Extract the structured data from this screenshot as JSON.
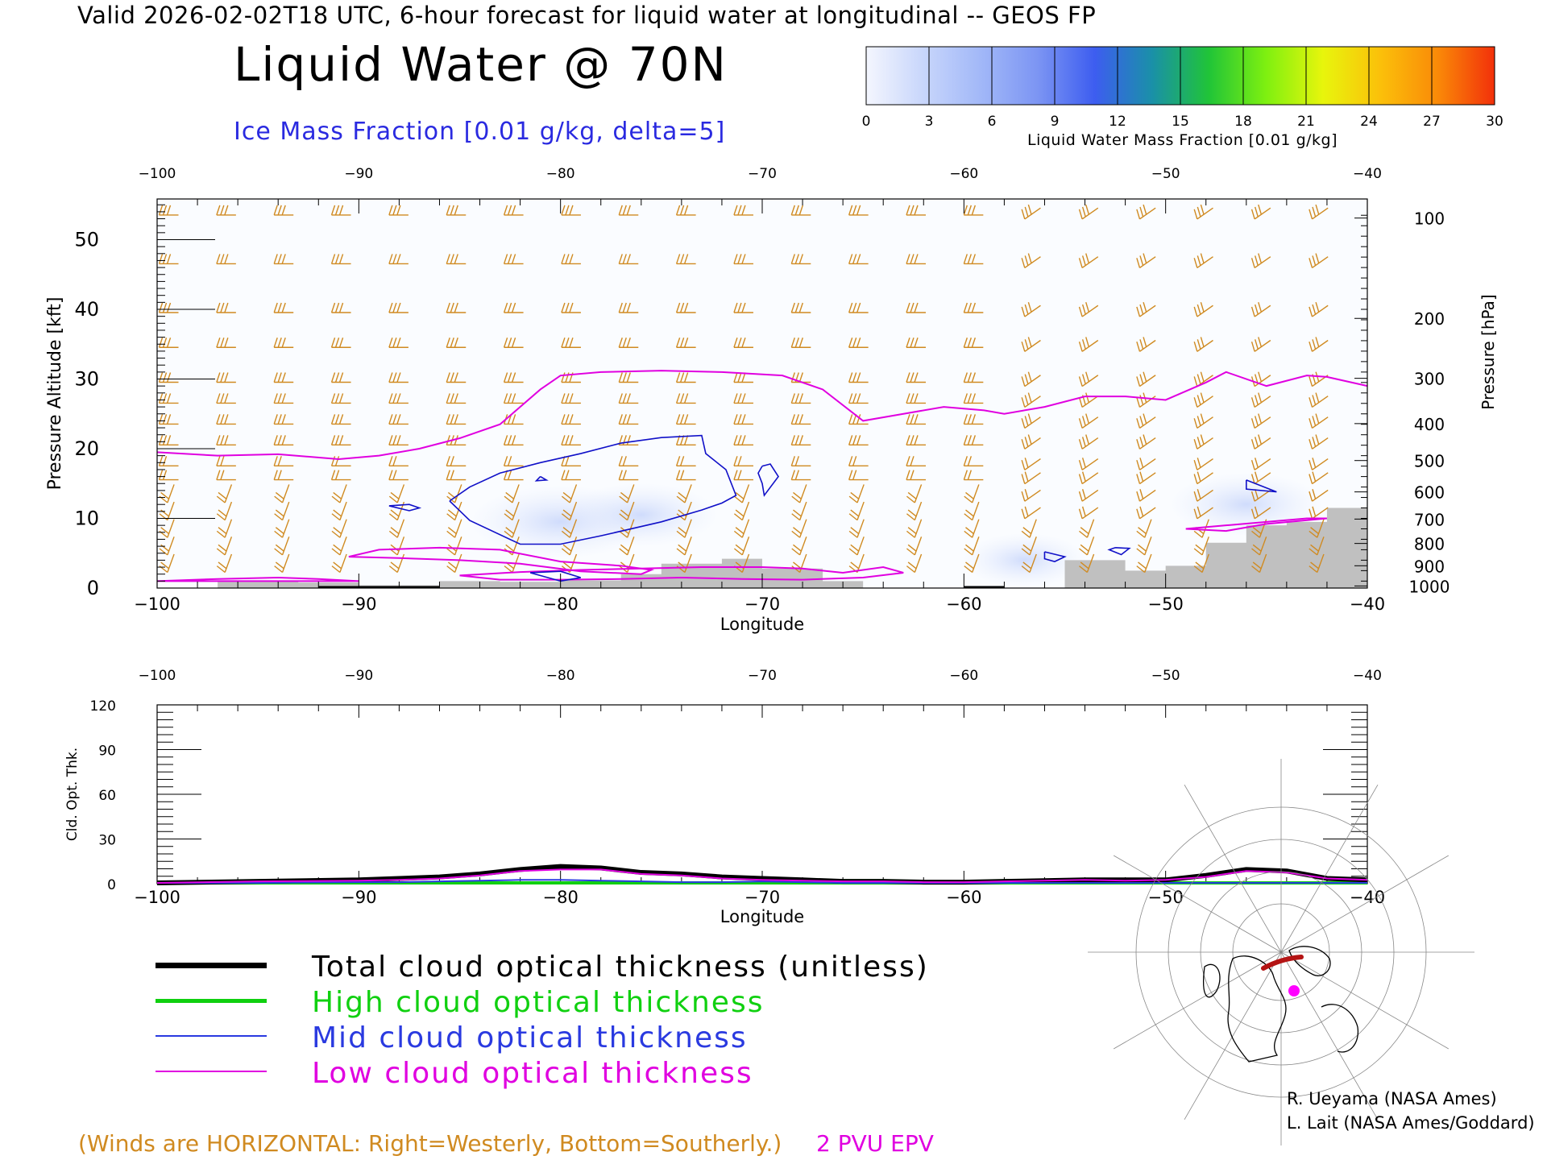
{
  "header": {
    "line": "Valid 2026-02-02T18 UTC, 6-hour forecast for liquid water at longitudinal -- GEOS FP",
    "title": "Liquid Water @ 70N",
    "ice_label": "Ice Mass Fraction [0.01 g/kg, delta=5]"
  },
  "colorbar": {
    "ticks": [
      "0",
      "3",
      "6",
      "9",
      "12",
      "15",
      "18",
      "21",
      "24",
      "27",
      "30"
    ],
    "label": "Liquid Water Mass Fraction [0.01 g/kg]",
    "colors": [
      "#f4f6fe",
      "#c8d6fb",
      "#a2b8f8",
      "#7c95f3",
      "#3d5df0",
      "#1a90a8",
      "#20c438",
      "#7ef010",
      "#e8f50c",
      "#fbc00a",
      "#fa8a08",
      "#f2300a"
    ]
  },
  "colors": {
    "wind": "#d08a20",
    "epv": "#e000e0",
    "ice": "#1010c8",
    "terrain": "#c0c0c0"
  },
  "chart_data": [
    {
      "type": "contour",
      "name": "cross-section",
      "xlabel": "Longitude",
      "ylabel": "Pressure Altitude [kft]",
      "ylabel_right": "Pressure [hPa]",
      "xlim": [
        -100,
        -40
      ],
      "ylim": [
        0,
        55
      ],
      "x_ticks": [
        -100,
        -90,
        -80,
        -70,
        -60,
        -50,
        -40
      ],
      "x_tick_labels": [
        "−100",
        "−90",
        "−80",
        "−70",
        "−60",
        "−50",
        "−40"
      ],
      "y_ticks": [
        0,
        10,
        20,
        30,
        40,
        50
      ],
      "pressure_ticks": [
        {
          "label": "100",
          "kft": 53.1
        },
        {
          "label": "200",
          "kft": 38.7
        },
        {
          "label": "300",
          "kft": 30.1
        },
        {
          "label": "400",
          "kft": 23.6
        },
        {
          "label": "500",
          "kft": 18.3
        },
        {
          "label": "600",
          "kft": 13.8
        },
        {
          "label": "700",
          "kft": 9.9
        },
        {
          "label": "800",
          "kft": 6.4
        },
        {
          "label": "900",
          "kft": 3.2
        },
        {
          "label": "1000",
          "kft": 0.3
        }
      ],
      "epv_2pvu": {
        "lon": [
          -100,
          -97,
          -94,
          -91,
          -89,
          -87,
          -85,
          -83,
          -81,
          -80,
          -78,
          -75,
          -72,
          -69,
          -67,
          -65,
          -63,
          -61,
          -59,
          -58,
          -56,
          -54,
          -52,
          -50,
          -48,
          -47,
          -45,
          -43,
          -42,
          -40
        ],
        "kft": [
          19.5,
          19.0,
          19.2,
          18.5,
          19.0,
          20.0,
          21.5,
          23.5,
          28.5,
          30.5,
          31.0,
          31.2,
          31.0,
          30.5,
          28.5,
          24.0,
          25.0,
          26.0,
          25.5,
          25.0,
          26.0,
          27.5,
          27.5,
          27.0,
          29.5,
          31.0,
          29.0,
          30.5,
          30.3,
          29.0
        ]
      },
      "ice_contours": [
        {
          "lon": [
            -85.5,
            -84.5,
            -83,
            -81,
            -79,
            -77,
            -75,
            -73,
            -72.8,
            -71.8,
            -71.3,
            -72,
            -73,
            -75,
            -78,
            -80,
            -82,
            -84.5,
            -85.5
          ],
          "kft": [
            12.5,
            14.5,
            16.5,
            18.0,
            19.3,
            20.8,
            21.6,
            21.9,
            19.3,
            17.0,
            13.3,
            12.2,
            11.2,
            9.5,
            7.5,
            6.3,
            6.3,
            9.7,
            12.5
          ]
        },
        {
          "lon": [
            -70,
            -69.6,
            -69.2,
            -69.9,
            -70,
            -70.2,
            -70
          ],
          "kft": [
            17.5,
            17.8,
            16.0,
            13.3,
            15.0,
            16.5,
            17.5
          ]
        },
        {
          "lon": [
            -88.5,
            -87.5,
            -87,
            -87.5,
            -88.5
          ],
          "kft": [
            11.8,
            12.0,
            11.5,
            11.1,
            11.8
          ]
        },
        {
          "lon": [
            -46,
            -44.5,
            -46,
            -46
          ],
          "kft": [
            15.5,
            13.8,
            14.2,
            15.5
          ]
        },
        {
          "lon": [
            -56,
            -55,
            -55.5,
            -56,
            -56
          ],
          "kft": [
            5.2,
            4.5,
            3.8,
            4.2,
            5.2
          ]
        },
        {
          "lon": [
            -52.5,
            -51.8,
            -52.2,
            -52.8,
            -52.5
          ],
          "kft": [
            5.8,
            5.7,
            4.8,
            5.5,
            5.8
          ]
        },
        {
          "lon": [
            -81.5,
            -80,
            -79,
            -80,
            -81.5
          ],
          "kft": [
            2.2,
            2.4,
            1.5,
            1.0,
            2.2
          ]
        },
        {
          "lon": [
            -81,
            -80.7,
            -81.2,
            -81
          ],
          "kft": [
            16.0,
            15.5,
            15.4,
            16.0
          ]
        }
      ],
      "low_epv_contours": [
        {
          "lon": [
            -90.5,
            -89,
            -86,
            -83,
            -80,
            -77,
            -75.5,
            -76,
            -79,
            -82,
            -85,
            -88,
            -90.5
          ],
          "kft": [
            4.5,
            5.5,
            5.8,
            5.5,
            3.8,
            3.2,
            2.6,
            2.0,
            2.4,
            3.5,
            4.0,
            4.3,
            4.5
          ]
        },
        {
          "lon": [
            -100,
            -97,
            -94,
            -92,
            -90,
            -100
          ],
          "kft": [
            1.0,
            1.3,
            1.5,
            1.3,
            1.0,
            1.0
          ]
        },
        {
          "lon": [
            -85,
            -82,
            -79,
            -76,
            -73,
            -70,
            -68,
            -66,
            -64,
            -63,
            -65,
            -68,
            -71,
            -74,
            -77,
            -80,
            -83,
            -85
          ],
          "kft": [
            1.8,
            2.3,
            2.6,
            2.8,
            3.0,
            3.0,
            2.8,
            2.2,
            3.0,
            2.2,
            1.5,
            1.2,
            1.3,
            1.5,
            1.3,
            1.2,
            1.2,
            1.8
          ]
        },
        {
          "lon": [
            -49,
            -47,
            -45,
            -43,
            -42,
            -45,
            -47,
            -49
          ],
          "kft": [
            8.5,
            9.0,
            9.5,
            10.0,
            10.0,
            9.2,
            8.2,
            8.5
          ]
        }
      ],
      "terrain": {
        "lon": [
          -97,
          -93,
          -90,
          -86,
          -83,
          -80,
          -77,
          -75,
          -72,
          -70,
          -67,
          -65,
          -58,
          -55,
          -52,
          -50,
          -48,
          -46,
          -44,
          -42,
          -40
        ],
        "kft": [
          1.0,
          0.8,
          0.4,
          1.0,
          0.9,
          1.1,
          2.0,
          3.5,
          4.2,
          2.8,
          1.0,
          0.0,
          0.0,
          4.0,
          2.5,
          3.2,
          6.5,
          9.0,
          9.5,
          11.5,
          11.5
        ]
      },
      "liquid_patches": [
        {
          "lon": -80,
          "kft": 9.5,
          "value": 3
        },
        {
          "lon": -76,
          "kft": 10.5,
          "value": 2
        },
        {
          "lon": -46,
          "kft": 12.0,
          "value": 2
        },
        {
          "lon": -57,
          "kft": 4.0,
          "value": 1
        }
      ]
    },
    {
      "type": "line",
      "name": "optical-thickness",
      "xlabel": "Longitude",
      "ylabel": "Cld. Opt. Thk.",
      "xlim": [
        -100,
        -40
      ],
      "ylim": [
        0,
        120
      ],
      "y_ticks": [
        0,
        30,
        60,
        90,
        120
      ],
      "x_ticks": [
        -100,
        -90,
        -80,
        -70,
        -60,
        -50,
        -40
      ],
      "x_tick_labels": [
        "−100",
        "−90",
        "−80",
        "−70",
        "−60",
        "−50",
        "−40"
      ],
      "x": [
        -100,
        -95,
        -90,
        -88,
        -86,
        -84,
        -82,
        -80,
        -78,
        -76,
        -74,
        -72,
        -70,
        -68,
        -66,
        -64,
        -62,
        -60,
        -58,
        -56,
        -54,
        -52,
        -50,
        -48,
        -46,
        -44,
        -42,
        -40
      ],
      "series": [
        {
          "name": "Total cloud optical thickness (unitless)",
          "color": "#000000",
          "width": 6,
          "values": [
            0,
            1,
            2,
            3,
            4,
            6,
            9,
            11,
            10,
            7,
            6,
            4,
            3,
            2,
            1,
            1,
            0.5,
            0.5,
            1,
            1.5,
            2,
            2,
            2,
            5,
            9,
            8,
            3,
            2
          ]
        },
        {
          "name": "High cloud optical thickness",
          "color": "#10d010",
          "width": 4,
          "values": [
            0,
            0,
            0,
            0,
            0,
            0,
            0,
            0,
            0,
            0,
            0,
            0,
            0,
            0,
            0,
            0,
            0,
            0,
            0,
            0,
            0,
            0,
            0,
            0,
            0,
            0,
            0,
            0
          ]
        },
        {
          "name": "Mid cloud optical thickness",
          "color": "#2a3ae0",
          "width": 2,
          "values": [
            0,
            0,
            0.5,
            0.5,
            1,
            1.5,
            2,
            2,
            1.5,
            1,
            0.5,
            0.5,
            1,
            0.5,
            0,
            0,
            0,
            0,
            0,
            0,
            0,
            0,
            0,
            0,
            0,
            0,
            0,
            0
          ]
        },
        {
          "name": "Low cloud optical thickness",
          "color": "#e000e0",
          "width": 2,
          "values": [
            0,
            1,
            1.5,
            2,
            3,
            5,
            8,
            9,
            9,
            6,
            5,
            3,
            2,
            1.5,
            1,
            1,
            0.5,
            0.5,
            1,
            1.5,
            2,
            1.5,
            2,
            4,
            8,
            7,
            3,
            2
          ]
        }
      ]
    }
  ],
  "legend": [
    {
      "label": "Total cloud optical thickness (unitless)",
      "color": "#000000",
      "text_color": "#000000",
      "thickness": 7
    },
    {
      "label": "High cloud optical thickness",
      "color": "#10d010",
      "text_color": "#10d010",
      "thickness": 5
    },
    {
      "label": "Mid cloud optical thickness",
      "color": "#2a3ae0",
      "text_color": "#2a3ae0",
      "thickness": 2
    },
    {
      "label": "Low cloud optical thickness",
      "color": "#e000e0",
      "text_color": "#e000e0",
      "thickness": 2
    }
  ],
  "footer": {
    "winds_note": "(Winds are HORIZONTAL: Right=Westerly, Bottom=Southerly.)",
    "epv_label": "2 PVU EPV",
    "credit1": "R. Ueyama (NASA Ames)",
    "credit2": "L. Lait (NASA Ames/Goddard)"
  }
}
